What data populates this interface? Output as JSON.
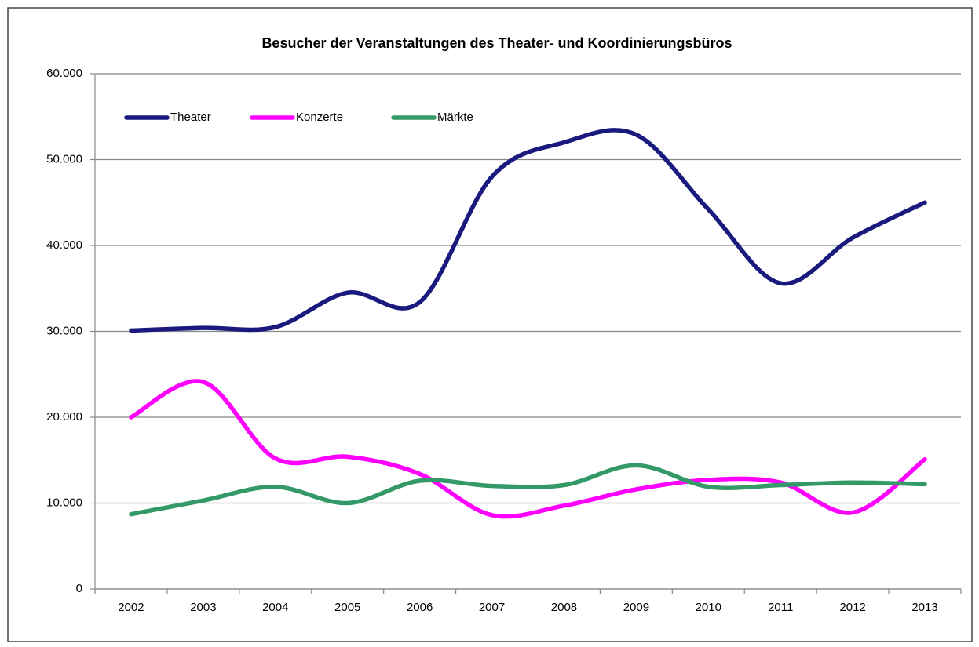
{
  "chart_data": {
    "type": "line",
    "title": "Besucher der Veranstaltungen des Theater- und Koordinierungsbüros",
    "categories": [
      "2002",
      "2003",
      "2004",
      "2005",
      "2006",
      "2007",
      "2008",
      "2009",
      "2010",
      "2011",
      "2012",
      "2013"
    ],
    "series": [
      {
        "name": "Theater",
        "color": "#1a1a7e",
        "values": [
          30100,
          30400,
          30500,
          34500,
          33400,
          48000,
          52000,
          52900,
          44200,
          35600,
          40900,
          45000
        ]
      },
      {
        "name": "Konzerte",
        "color": "#ff00ff",
        "values": [
          20000,
          24100,
          15200,
          15400,
          13400,
          8600,
          9700,
          11600,
          12700,
          12400,
          8900,
          15100
        ]
      },
      {
        "name": "Märkte",
        "color": "#339966",
        "values": [
          8700,
          10300,
          11900,
          10000,
          12600,
          12000,
          12100,
          14400,
          11900,
          12100,
          12400,
          12200
        ]
      }
    ],
    "ylim": [
      0,
      60000
    ],
    "yticks": [
      0,
      {
        "value": 10000,
        "label": "10.000"
      },
      {
        "value": 20000,
        "label": "20.000"
      },
      {
        "value": 30000,
        "label": "30.000"
      },
      {
        "value": 40000,
        "label": "40.000"
      },
      {
        "value": 50000,
        "label": "50.000"
      },
      {
        "value": 60000,
        "label": "60.000"
      }
    ],
    "grid": true,
    "smooth": true,
    "legend": "top-left"
  }
}
